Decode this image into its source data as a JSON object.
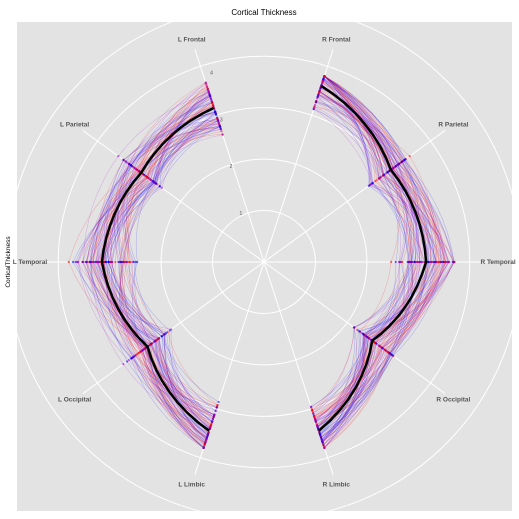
{
  "chart_data": {
    "type": "radar",
    "title": "Cortical Thickness",
    "ylabel": "CorticalThickness",
    "axes": [
      "R Frontal",
      "R Parietal",
      "R Temporal",
      "R Occipital",
      "R Limbic",
      "L Limbic",
      "L Occipital",
      "L Temporal",
      "L Parietal",
      "L Frontal"
    ],
    "axis_angles_deg": [
      18,
      54,
      90,
      126,
      162,
      198,
      234,
      270,
      306,
      342
    ],
    "radial_ticks": [
      "1",
      "2",
      "3",
      "4"
    ],
    "rlim": [
      0,
      4.7
    ],
    "grid": true,
    "legend": "none",
    "background_color": "#e3e3e3",
    "grid_color": "#ffffff",
    "series": [
      {
        "values": [
          3.6,
          3.05,
          3.15,
          2.6,
          3.45,
          3.45,
          2.8,
          3.15,
          2.95,
          3.15
        ],
        "color": "#000000",
        "width": 2.5
      }
    ],
    "individual_ranges": {
      "low": [
        2.3,
        2.0,
        1.9,
        1.9,
        2.3,
        2.3,
        2.0,
        1.9,
        2.0,
        2.3
      ],
      "high": [
        3.8,
        3.5,
        3.7,
        3.3,
        3.8,
        3.8,
        3.5,
        3.8,
        3.5,
        3.8
      ],
      "colors": [
        "#ff0000",
        "#0000ff",
        "#9900cc"
      ]
    }
  }
}
